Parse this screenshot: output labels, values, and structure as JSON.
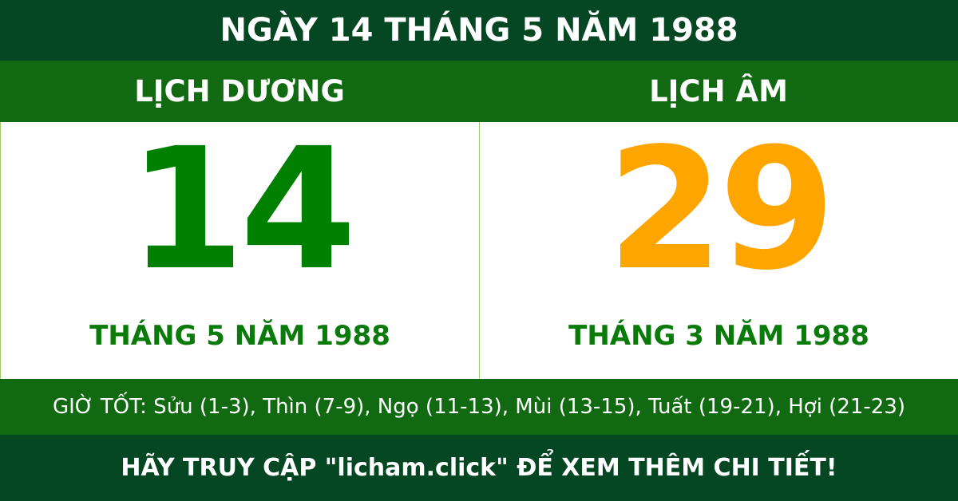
{
  "title": "NGÀY 14 THÁNG 5 NĂM 1988",
  "solar": {
    "header": "LỊCH DƯƠNG",
    "day": "14",
    "month_year": "THÁNG 5 NĂM 1988"
  },
  "lunar": {
    "header": "LỊCH ÂM",
    "day": "29",
    "month_year": "THÁNG 3 NĂM 1988"
  },
  "good_hours": "GIỜ TỐT: Sửu (1-3), Thìn (7-9), Ngọ (11-13), Mùi (13-15), Tuất (19-21), Hợi (21-23)",
  "footer": "HÃY TRUY CẬP \"licham.click\" ĐỂ XEM THÊM CHI TIẾT!",
  "colors": {
    "dark_green": "#054722",
    "band_green": "#116a11",
    "solar_day": "#008000",
    "lunar_day": "#ffa500"
  }
}
